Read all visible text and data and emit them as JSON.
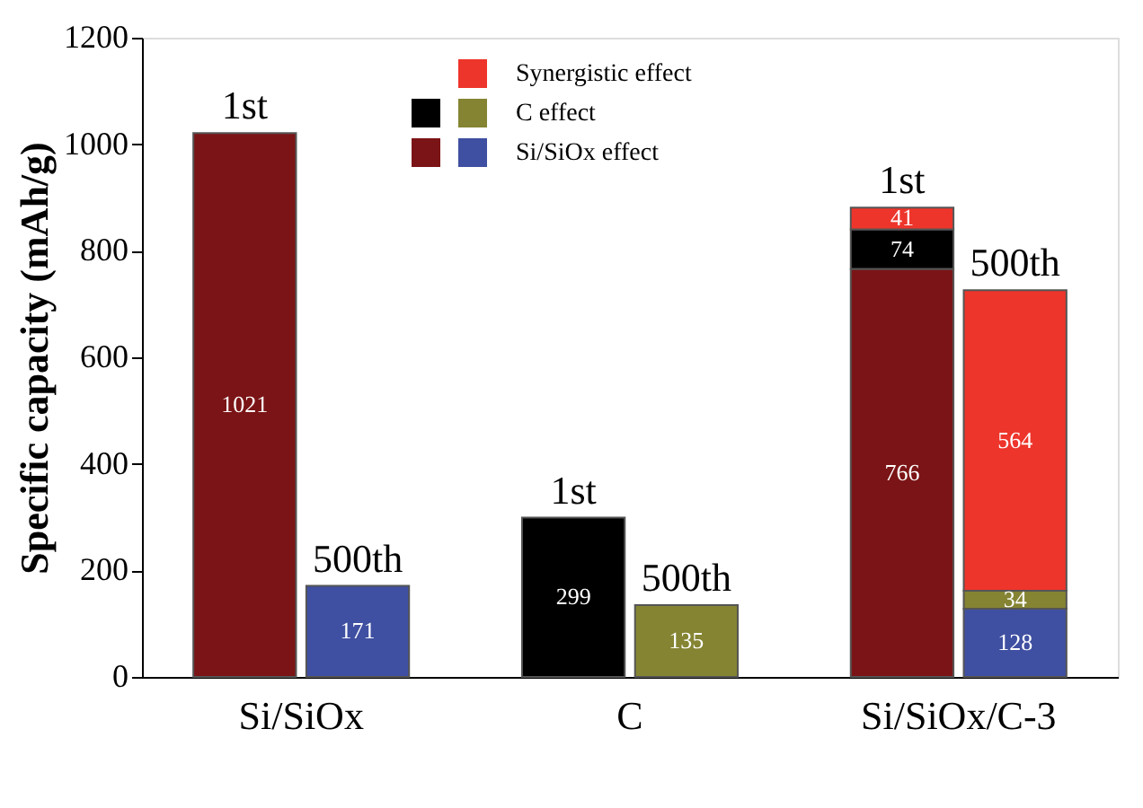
{
  "chart_data": {
    "type": "bar",
    "stacked": true,
    "ylabel": "Specific capacity (mAh/g)",
    "categories": [
      "1st",
      "500th",
      "1st",
      "500th",
      "1st",
      "500th"
    ],
    "ylim": [
      0,
      1200
    ],
    "yticks": [
      0,
      200,
      400,
      600,
      800,
      1000,
      1200
    ],
    "grid": false,
    "legend": "top",
    "data_labels": true,
    "series": [
      {
        "name": "Si/SiOx effect",
        "colors": [
          "#7b1416",
          "#3f4fa1",
          null,
          null,
          "#7b1416",
          "#3f4fa1"
        ],
        "values": [
          1021,
          171,
          null,
          null,
          766,
          128
        ]
      },
      {
        "name": "C effect",
        "colors": [
          null,
          null,
          "#000000",
          "#858433",
          "#000000",
          "#858433"
        ],
        "values": [
          null,
          null,
          299,
          135,
          74,
          34
        ]
      },
      {
        "name": "Synergistic effect",
        "colors": [
          null,
          null,
          null,
          null,
          "#ee352b",
          "#ee352b"
        ],
        "values": [
          null,
          null,
          null,
          null,
          41,
          564
        ]
      }
    ],
    "annotations": [
      "Si/SiOx",
      "C",
      "Si/SiOx/C-3"
    ]
  }
}
